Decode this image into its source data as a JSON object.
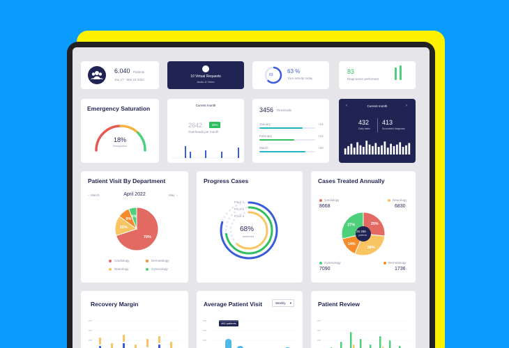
{
  "stats": {
    "patients_value": "6.040",
    "patients_label": "Patients",
    "patients_range": "Jan 17 · Mar 18 2022",
    "requests_value": "10 Virtual Requests",
    "requests_sub": "Audio & Video",
    "activity_ring": "63",
    "activity_value": "63 %",
    "activity_label": "Your activity today",
    "diagnostics_value": "83",
    "diagnostics_label": "Diagnostics performed"
  },
  "emergency": {
    "title": "Emergency Saturation",
    "value": "18%",
    "label": "Occupation"
  },
  "current_month": {
    "header": "Current month",
    "value": "2642",
    "label": "Overheads per month",
    "badge": "20%"
  },
  "threshold": {
    "value": "3456",
    "label": "Thresholds",
    "rows": [
      {
        "name": "January",
        "value": "+14",
        "fill": 0.78
      },
      {
        "name": "February",
        "value": "+12",
        "fill": 0.62
      },
      {
        "name": "March",
        "value": "+10",
        "fill": 0.82
      }
    ]
  },
  "dark_panel": {
    "header": "Current month",
    "left_value": "432",
    "left_label": "Daily tasks",
    "right_value": "413",
    "right_label": "Successful diagnosis",
    "bars": [
      0.4,
      0.55,
      0.7,
      0.45,
      0.8,
      0.6,
      0.5,
      0.9,
      0.65,
      0.55,
      0.75,
      0.5,
      0.6,
      0.85,
      0.45,
      0.7,
      0.55,
      0.65,
      0.8,
      0.5,
      0.6,
      0.75
    ]
  },
  "patient_visit": {
    "title": "Patient Visit By Department",
    "prev": "March",
    "month": "April 2022",
    "next": "May",
    "legend": [
      "Cardiology",
      "Dermatology",
      "Neurology",
      "Gynecology"
    ],
    "colors": {
      "Cardiology": "#e26a62",
      "Dermatology": "#f48c2c",
      "Neurology": "#f9c562",
      "Gynecology": "#4ecf7c"
    }
  },
  "progress": {
    "title": "Progress Cases",
    "rings": [
      "Floor 1",
      "Floor 2",
      "Floor 3"
    ],
    "value": "68%",
    "label": "achieved"
  },
  "cases_annual": {
    "title": "Cases Treated Annually",
    "tl_label": "Cardiology",
    "tl_value": "8668",
    "tr_label": "Neurology",
    "tr_value": "6830",
    "bl_label": "Gynecology",
    "bl_value": "7090",
    "br_label": "Dermatology",
    "br_value": "1736",
    "center_value": "26 265",
    "center_label": "patients"
  },
  "recovery": {
    "title": "Recovery Margin"
  },
  "avg_visit": {
    "title": "Average Patient Visit",
    "dropdown": "Weekly",
    "tooltip": "460 patients"
  },
  "review": {
    "title": "Patient Review"
  },
  "chart_data": [
    {
      "type": "pie",
      "title": "Patient Visit By Department",
      "labels": [
        "Cardiology",
        "Neurology",
        "Dermatology",
        "Gynecology"
      ],
      "values": [
        70,
        15,
        9,
        6
      ]
    },
    {
      "type": "pie",
      "title": "Cases Treated Annually",
      "labels": [
        "Cardiology",
        "Neurology",
        "Dermatology",
        "Gynecology"
      ],
      "values": [
        25,
        28,
        14,
        27
      ]
    }
  ]
}
